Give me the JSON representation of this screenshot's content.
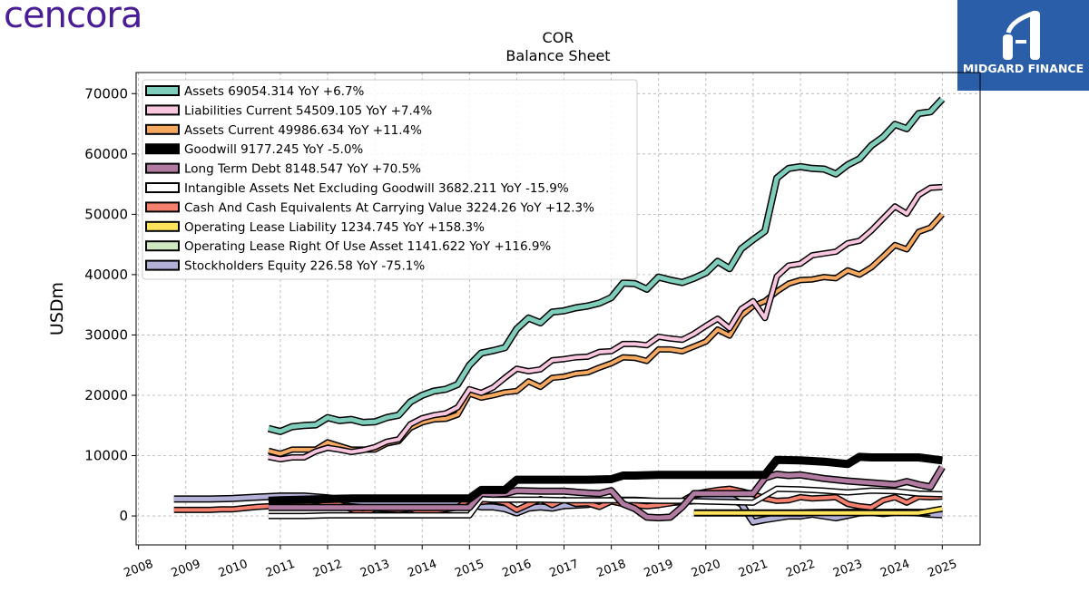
{
  "brand": {
    "logo_text": "cencora",
    "badge_text": "MIDGARD FINANCE"
  },
  "colors": {
    "brand": "#4a1d96",
    "badge": "#2a5ea9"
  },
  "chart_data": {
    "type": "line",
    "title": "COR",
    "subtitle": "Balance  Sheet",
    "ylabel": "USDm",
    "xlabel": "",
    "ylim": [
      -4800,
      73500
    ],
    "xlim": [
      2007.95,
      2025.8
    ],
    "yticks": [
      0,
      10000,
      20000,
      30000,
      40000,
      50000,
      60000,
      70000
    ],
    "xticks": [
      2008,
      2009,
      2010,
      2011,
      2012,
      2013,
      2014,
      2015,
      2016,
      2017,
      2018,
      2019,
      2020,
      2021,
      2022,
      2023,
      2024,
      2025
    ],
    "grid": true,
    "legend_position": "top-left",
    "series": [
      {
        "name": "Assets",
        "legend": "Assets  69054.314 YoY +6.7%",
        "color": "#7fcdbb",
        "width": 5,
        "x": [
          2010.75,
          2011.0,
          2011.25,
          2011.5,
          2011.75,
          2012.0,
          2012.25,
          2012.5,
          2012.75,
          2013.0,
          2013.25,
          2013.5,
          2013.75,
          2014.0,
          2014.25,
          2014.5,
          2014.75,
          2015.0,
          2015.25,
          2015.5,
          2015.75,
          2016.0,
          2016.25,
          2016.5,
          2016.75,
          2017.0,
          2017.25,
          2017.5,
          2017.75,
          2018.0,
          2018.25,
          2018.5,
          2018.75,
          2019.0,
          2019.25,
          2019.5,
          2019.75,
          2020.0,
          2020.25,
          2020.5,
          2020.75,
          2021.0,
          2021.25,
          2021.5,
          2021.75,
          2022.0,
          2022.25,
          2022.5,
          2022.75,
          2023.0,
          2023.25,
          2023.5,
          2023.75,
          2024.0,
          2024.25,
          2024.5,
          2024.75,
          2025.0
        ],
        "y": [
          14500,
          14000,
          14800,
          15000,
          15100,
          16300,
          15800,
          16000,
          15500,
          15600,
          16300,
          16700,
          18900,
          20000,
          20700,
          21000,
          21800,
          25000,
          27000,
          27400,
          27900,
          31000,
          32800,
          32000,
          33800,
          34000,
          34500,
          34800,
          35300,
          36200,
          38600,
          38500,
          37600,
          39600,
          39100,
          38700,
          39400,
          40300,
          42200,
          41000,
          44300,
          45800,
          47200,
          56000,
          57600,
          57900,
          57600,
          57500,
          56700,
          58200,
          59200,
          61400,
          62800,
          64900,
          64200,
          66700,
          67000,
          69100
        ]
      },
      {
        "name": "Liabilities Current",
        "legend": "Liabilities Current  54509.105 YoY +7.4%",
        "color": "#f9c6df",
        "width": 4,
        "x": [
          2010.75,
          2011.0,
          2011.25,
          2011.5,
          2011.75,
          2012.0,
          2012.25,
          2012.5,
          2012.75,
          2013.0,
          2013.25,
          2013.5,
          2013.75,
          2014.0,
          2014.25,
          2014.5,
          2014.75,
          2015.0,
          2015.25,
          2015.5,
          2015.75,
          2016.0,
          2016.25,
          2016.5,
          2016.75,
          2017.0,
          2017.25,
          2017.5,
          2017.75,
          2018.0,
          2018.25,
          2018.5,
          2018.75,
          2019.0,
          2019.25,
          2019.5,
          2019.75,
          2020.0,
          2020.25,
          2020.5,
          2020.75,
          2021.0,
          2021.25,
          2021.5,
          2021.75,
          2022.0,
          2022.25,
          2022.5,
          2022.75,
          2023.0,
          2023.25,
          2023.5,
          2023.75,
          2024.0,
          2024.25,
          2024.5,
          2024.75,
          2025.0
        ],
        "y": [
          9800,
          9400,
          9700,
          9700,
          10700,
          11300,
          11000,
          10600,
          10900,
          11400,
          12300,
          12700,
          15200,
          16200,
          16700,
          17000,
          18000,
          21000,
          20400,
          21300,
          22900,
          24400,
          24000,
          24300,
          25800,
          26000,
          26300,
          26400,
          27200,
          27300,
          28500,
          28500,
          28300,
          29700,
          29400,
          29200,
          30200,
          31500,
          32700,
          31100,
          34300,
          35600,
          32800,
          39700,
          41500,
          41800,
          43200,
          43500,
          43800,
          45200,
          45600,
          47300,
          49300,
          51300,
          50100,
          53200,
          54400,
          54500
        ]
      },
      {
        "name": "Assets Current",
        "legend": "Assets Current  49986.634 YoY +11.4%",
        "color": "#f5a961",
        "width": 4,
        "x": [
          2010.75,
          2011.0,
          2011.25,
          2011.5,
          2011.75,
          2012.0,
          2012.25,
          2012.5,
          2012.75,
          2013.0,
          2013.25,
          2013.5,
          2013.75,
          2014.0,
          2014.25,
          2014.5,
          2014.75,
          2015.0,
          2015.25,
          2015.5,
          2015.75,
          2016.0,
          2016.25,
          2016.5,
          2016.75,
          2017.0,
          2017.25,
          2017.5,
          2017.75,
          2018.0,
          2018.25,
          2018.5,
          2018.75,
          2019.0,
          2019.25,
          2019.5,
          2019.75,
          2020.0,
          2020.25,
          2020.5,
          2020.75,
          2021.0,
          2021.25,
          2021.5,
          2021.75,
          2022.0,
          2022.25,
          2022.5,
          2022.75,
          2023.0,
          2023.25,
          2023.5,
          2023.75,
          2024.0,
          2024.25,
          2024.5,
          2024.75,
          2025.0
        ],
        "y": [
          10800,
          10300,
          11000,
          11000,
          11000,
          12200,
          11600,
          11000,
          11000,
          11000,
          12000,
          12400,
          14600,
          15500,
          16000,
          16100,
          16800,
          20300,
          19600,
          20000,
          20500,
          20700,
          22300,
          21400,
          22900,
          23100,
          23600,
          23800,
          24600,
          25300,
          26300,
          26200,
          25700,
          27600,
          27600,
          27300,
          28100,
          28900,
          30900,
          29900,
          33200,
          34800,
          35600,
          37200,
          38500,
          39100,
          39200,
          39600,
          39400,
          40700,
          40000,
          41200,
          43000,
          44900,
          44200,
          47100,
          47800,
          50000
        ]
      },
      {
        "name": "Goodwill",
        "legend": "Goodwill  9177.245 YoY -5.0%",
        "color": "#000000",
        "width": 6,
        "x": [
          2010.75,
          2011.0,
          2011.5,
          2012.0,
          2012.5,
          2013.0,
          2013.5,
          2014.0,
          2014.5,
          2015.0,
          2015.25,
          2015.5,
          2015.75,
          2016.0,
          2016.5,
          2017.0,
          2017.5,
          2018.0,
          2018.25,
          2018.5,
          2019.0,
          2019.5,
          2020.0,
          2020.5,
          2021.0,
          2021.25,
          2021.5,
          2022.0,
          2022.5,
          2023.0,
          2023.25,
          2023.5,
          2024.0,
          2024.5,
          2025.0
        ],
        "y": [
          2500,
          2600,
          2700,
          2800,
          2900,
          2900,
          2900,
          2900,
          2900,
          2900,
          4300,
          4300,
          4300,
          6000,
          6000,
          6000,
          6000,
          6100,
          6700,
          6700,
          6800,
          6800,
          6800,
          6800,
          6800,
          6800,
          9300,
          9200,
          9000,
          8600,
          9800,
          9700,
          9700,
          9700,
          9200
        ]
      },
      {
        "name": "Long Term Debt",
        "legend": "Long Term Debt  8148.547 YoY +70.5%",
        "color": "#b07aa1",
        "width": 5,
        "x": [
          2010.75,
          2011.0,
          2011.5,
          2012.0,
          2012.5,
          2012.75,
          2013.0,
          2013.5,
          2014.0,
          2014.5,
          2015.0,
          2015.25,
          2015.5,
          2015.75,
          2016.0,
          2016.5,
          2017.0,
          2017.5,
          2017.75,
          2018.0,
          2018.25,
          2018.5,
          2018.75,
          2019.0,
          2019.25,
          2019.5,
          2019.75,
          2020.0,
          2020.5,
          2020.75,
          2021.0,
          2021.25,
          2021.5,
          2021.75,
          2022.0,
          2022.5,
          2023.0,
          2023.5,
          2024.0,
          2024.25,
          2024.5,
          2024.75,
          2025.0
        ],
        "y": [
          1400,
          1400,
          1400,
          1400,
          1400,
          1400,
          1400,
          1400,
          1400,
          1400,
          1400,
          3700,
          3600,
          3700,
          4200,
          4100,
          4100,
          3800,
          3700,
          4200,
          2000,
          1200,
          -200,
          -300,
          -200,
          1500,
          3700,
          3700,
          3700,
          3700,
          3700,
          6300,
          6900,
          6700,
          6800,
          6200,
          5800,
          5500,
          5200,
          5700,
          5200,
          4800,
          8100
        ]
      },
      {
        "name": "Intangible Assets Net Excluding Goodwill",
        "legend": "Intangible Assets Net Excluding Goodwill  3682.211 YoY -15.9%",
        "color": "#ffffff",
        "width": 4,
        "x": [
          2010.75,
          2011.0,
          2011.5,
          2012.0,
          2012.5,
          2013.0,
          2013.5,
          2014.0,
          2014.5,
          2015.0,
          2015.25,
          2015.5,
          2016.0,
          2016.5,
          2017.0,
          2017.5,
          2018.0,
          2018.5,
          2019.0,
          2019.5,
          2020.0,
          2020.5,
          2021.0,
          2021.5,
          2022.0,
          2022.5,
          2023.0,
          2023.5,
          2024.0,
          2024.5,
          2025.0
        ],
        "y": [
          0,
          0,
          0,
          100,
          100,
          100,
          100,
          100,
          100,
          100,
          2800,
          2700,
          2700,
          2700,
          2600,
          2600,
          2600,
          2600,
          2500,
          2500,
          2400,
          2300,
          2200,
          4500,
          4400,
          4200,
          3900,
          4200,
          4100,
          3700,
          3600
        ]
      },
      {
        "name": "Cash And Cash Equivalents At Carrying Value",
        "legend": "Cash And Cash Equivalents At Carrying Value  3224.26 YoY +12.3%",
        "color": "#f4806d",
        "width": 4,
        "x": [
          2008.75,
          2009.0,
          2009.25,
          2009.5,
          2009.75,
          2010.0,
          2010.25,
          2010.5,
          2010.75,
          2011.0,
          2011.25,
          2011.5,
          2011.75,
          2012.0,
          2012.25,
          2012.5,
          2012.75,
          2013.0,
          2013.25,
          2013.5,
          2013.75,
          2014.0,
          2014.25,
          2014.5,
          2014.75,
          2015.0,
          2015.25,
          2015.5,
          2015.75,
          2016.0,
          2016.25,
          2016.5,
          2016.75,
          2017.0,
          2017.25,
          2017.5,
          2017.75,
          2018.0,
          2018.25,
          2018.5,
          2018.75,
          2019.0,
          2019.25,
          2019.5,
          2019.75,
          2020.0,
          2020.25,
          2020.5,
          2020.75,
          2021.0,
          2021.25,
          2021.5,
          2021.75,
          2022.0,
          2022.25,
          2022.5,
          2022.75,
          2023.0,
          2023.25,
          2023.5,
          2023.75,
          2024.0,
          2024.25,
          2024.5,
          2024.75,
          2025.0
        ],
        "y": [
          1000,
          1000,
          1000,
          1000,
          1100,
          1100,
          1300,
          1500,
          1600,
          1700,
          1800,
          1900,
          1600,
          2000,
          1900,
          1100,
          400,
          1200,
          1100,
          1000,
          1200,
          500,
          800,
          1100,
          1400,
          2800,
          2300,
          2600,
          2200,
          1000,
          1900,
          2800,
          1800,
          2700,
          2000,
          2100,
          1500,
          2400,
          2000,
          1800,
          1600,
          1800,
          2100,
          2500,
          3600,
          4000,
          4300,
          4500,
          4100,
          3600,
          2900,
          2500,
          2600,
          3100,
          2900,
          3000,
          3100,
          2000,
          1600,
          1400,
          2600,
          3100,
          2200,
          3200,
          3100,
          3200
        ]
      },
      {
        "name": "Operating Lease Liability",
        "legend": "Operating Lease Liability  1234.745 YoY +158.3%",
        "color": "#ffe45c",
        "width": 4,
        "x": [
          2019.75,
          2020.0,
          2020.5,
          2021.0,
          2021.5,
          2022.0,
          2022.5,
          2023.0,
          2023.5,
          2024.0,
          2024.5,
          2025.0
        ],
        "y": [
          500,
          500,
          500,
          500,
          500,
          500,
          500,
          500,
          500,
          500,
          500,
          1200
        ]
      },
      {
        "name": "Operating Lease Right Of Use Asset",
        "legend": "Operating Lease Right Of Use Asset  1141.622 YoY +116.9%",
        "color": "#cfe8c1",
        "width": 5,
        "x": [
          2019.75,
          2020.0,
          2020.5,
          2021.0,
          2021.5,
          2022.0,
          2022.5,
          2023.0,
          2023.5,
          2024.0,
          2024.5,
          2024.75
        ],
        "y": [
          500,
          500,
          500,
          500,
          500,
          500,
          600,
          600,
          600,
          600,
          600,
          600
        ]
      },
      {
        "name": "Stockholders Equity",
        "legend": "Stockholders Equity  226.58 YoY -75.1%",
        "color": "#b4b1d8",
        "width": 5,
        "x": [
          2008.75,
          2009.0,
          2009.5,
          2010.0,
          2010.5,
          2011.0,
          2011.5,
          2012.0,
          2012.5,
          2013.0,
          2013.5,
          2014.0,
          2014.5,
          2015.0,
          2015.25,
          2015.5,
          2015.75,
          2016.0,
          2016.25,
          2016.5,
          2016.75,
          2017.0,
          2017.25,
          2017.5,
          2017.75,
          2018.0,
          2018.25,
          2018.5,
          2018.75,
          2019.0,
          2019.25,
          2019.5,
          2019.75,
          2020.0,
          2020.25,
          2020.5,
          2020.75,
          2021.0,
          2021.25,
          2021.5,
          2021.75,
          2022.0,
          2022.25,
          2022.5,
          2022.75,
          2023.0,
          2023.25,
          2023.5,
          2023.75,
          2024.0,
          2024.25,
          2024.5,
          2024.75,
          2025.0
        ],
        "y": [
          2800,
          2800,
          2800,
          2900,
          3100,
          3300,
          3300,
          3000,
          2500,
          2200,
          2200,
          2300,
          2100,
          2000,
          1500,
          1500,
          1200,
          500,
          1300,
          1500,
          1300,
          1700,
          1800,
          1900,
          2300,
          2600,
          2600,
          2600,
          2500,
          2300,
          2200,
          2400,
          2500,
          2800,
          3000,
          3000,
          2000,
          -1000,
          -600,
          -300,
          0,
          0,
          300,
          0,
          -300,
          100,
          500,
          600,
          400,
          600,
          600,
          500,
          300,
          200
        ]
      }
    ]
  }
}
